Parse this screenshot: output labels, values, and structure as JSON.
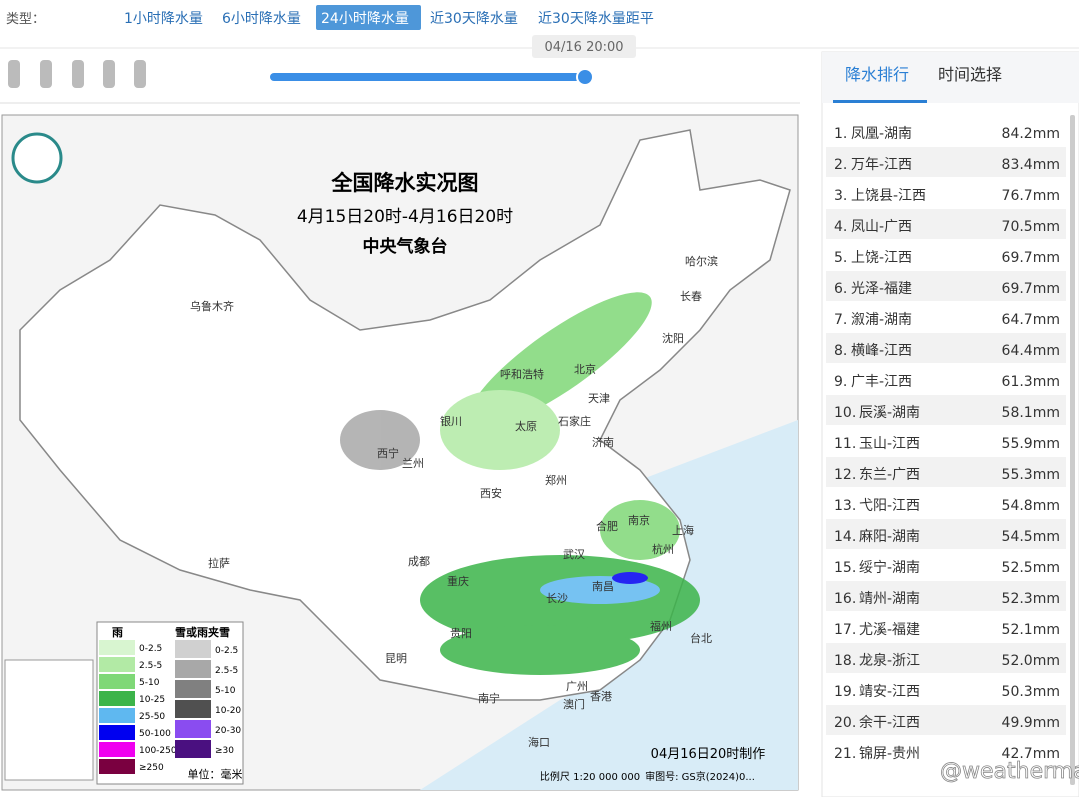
{
  "toolbar": {
    "label": "类型：",
    "tabs": [
      "1小时降水量",
      "6小时降水量",
      "24小时降水量",
      "近30天降水量",
      "近30天降水量距平"
    ],
    "active_tab": 2
  },
  "slider": {
    "time": "04/16 20:00"
  },
  "map": {
    "title": "全国降水实况图",
    "period": "4月15日20时-4月16日20时",
    "issuer": "中央气象台",
    "cities": [
      "乌鲁木齐",
      "哈尔滨",
      "长春",
      "沈阳",
      "呼和浩特",
      "北京",
      "天津",
      "银川",
      "太原",
      "石家庄",
      "济南",
      "西宁",
      "兰州",
      "西安",
      "郑州",
      "合肥",
      "南京",
      "上海",
      "成都",
      "武汉",
      "杭州",
      "拉萨",
      "重庆",
      "长沙",
      "南昌",
      "贵阳",
      "福州",
      "台北",
      "昆明",
      "广州",
      "香港",
      "澳门",
      "南宁",
      "海口"
    ],
    "legend": {
      "rain_title": "雨",
      "snow_title": "雪或雨夹雪",
      "rain": [
        {
          "label": "0-2.5",
          "color": "#d8f5d0"
        },
        {
          "label": "2.5-5",
          "color": "#b2eaa5"
        },
        {
          "label": "5-10",
          "color": "#7fd877"
        },
        {
          "label": "10-25",
          "color": "#3cb44a"
        },
        {
          "label": "25-50",
          "color": "#5fb8f0"
        },
        {
          "label": "50-100",
          "color": "#0000f0"
        },
        {
          "label": "100-250",
          "color": "#f000f0"
        },
        {
          "label": "≥250",
          "color": "#7a0040"
        }
      ],
      "snow": [
        {
          "label": "0-2.5",
          "color": "#d0d0d0"
        },
        {
          "label": "2.5-5",
          "color": "#a8a8a8"
        },
        {
          "label": "5-10",
          "color": "#808080"
        },
        {
          "label": "10-20",
          "color": "#505050"
        },
        {
          "label": "20-30",
          "color": "#8a4cf0"
        },
        {
          "label": "≥30",
          "color": "#4a1080"
        }
      ],
      "unit": "单位：毫米"
    },
    "made": "04月16日20时制作",
    "scale": "比例尺 1:20 000 000",
    "review": "审图号: GS京(2024)0..."
  },
  "panel": {
    "tabs": [
      "降水排行",
      "时间选择"
    ],
    "active_tab": 0,
    "rows": [
      [
        "1.",
        "凤凰-湖南",
        "84.2mm"
      ],
      [
        "2.",
        "万年-江西",
        "83.4mm"
      ],
      [
        "3.",
        "上饶县-江西",
        "76.7mm"
      ],
      [
        "4.",
        "凤山-广西",
        "70.5mm"
      ],
      [
        "5.",
        "上饶-江西",
        "69.7mm"
      ],
      [
        "6.",
        "光泽-福建",
        "69.7mm"
      ],
      [
        "7.",
        "溆浦-湖南",
        "64.7mm"
      ],
      [
        "8.",
        "横峰-江西",
        "64.4mm"
      ],
      [
        "9.",
        "广丰-江西",
        "61.3mm"
      ],
      [
        "10.",
        "辰溪-湖南",
        "58.1mm"
      ],
      [
        "11.",
        "玉山-江西",
        "55.9mm"
      ],
      [
        "12.",
        "东兰-广西",
        "55.3mm"
      ],
      [
        "13.",
        "弋阳-江西",
        "54.8mm"
      ],
      [
        "14.",
        "麻阳-湖南",
        "54.5mm"
      ],
      [
        "15.",
        "绥宁-湖南",
        "52.5mm"
      ],
      [
        "16.",
        "靖州-湖南",
        "52.3mm"
      ],
      [
        "17.",
        "尤溪-福建",
        "52.1mm"
      ],
      [
        "18.",
        "龙泉-浙江",
        "52.0mm"
      ],
      [
        "19.",
        "靖安-江西",
        "50.3mm"
      ],
      [
        "20.",
        "余干-江西",
        "49.9mm"
      ],
      [
        "21.",
        "锦屏-贵州",
        "42.7mm"
      ]
    ]
  },
  "watermark": "@weatherman_信欣"
}
